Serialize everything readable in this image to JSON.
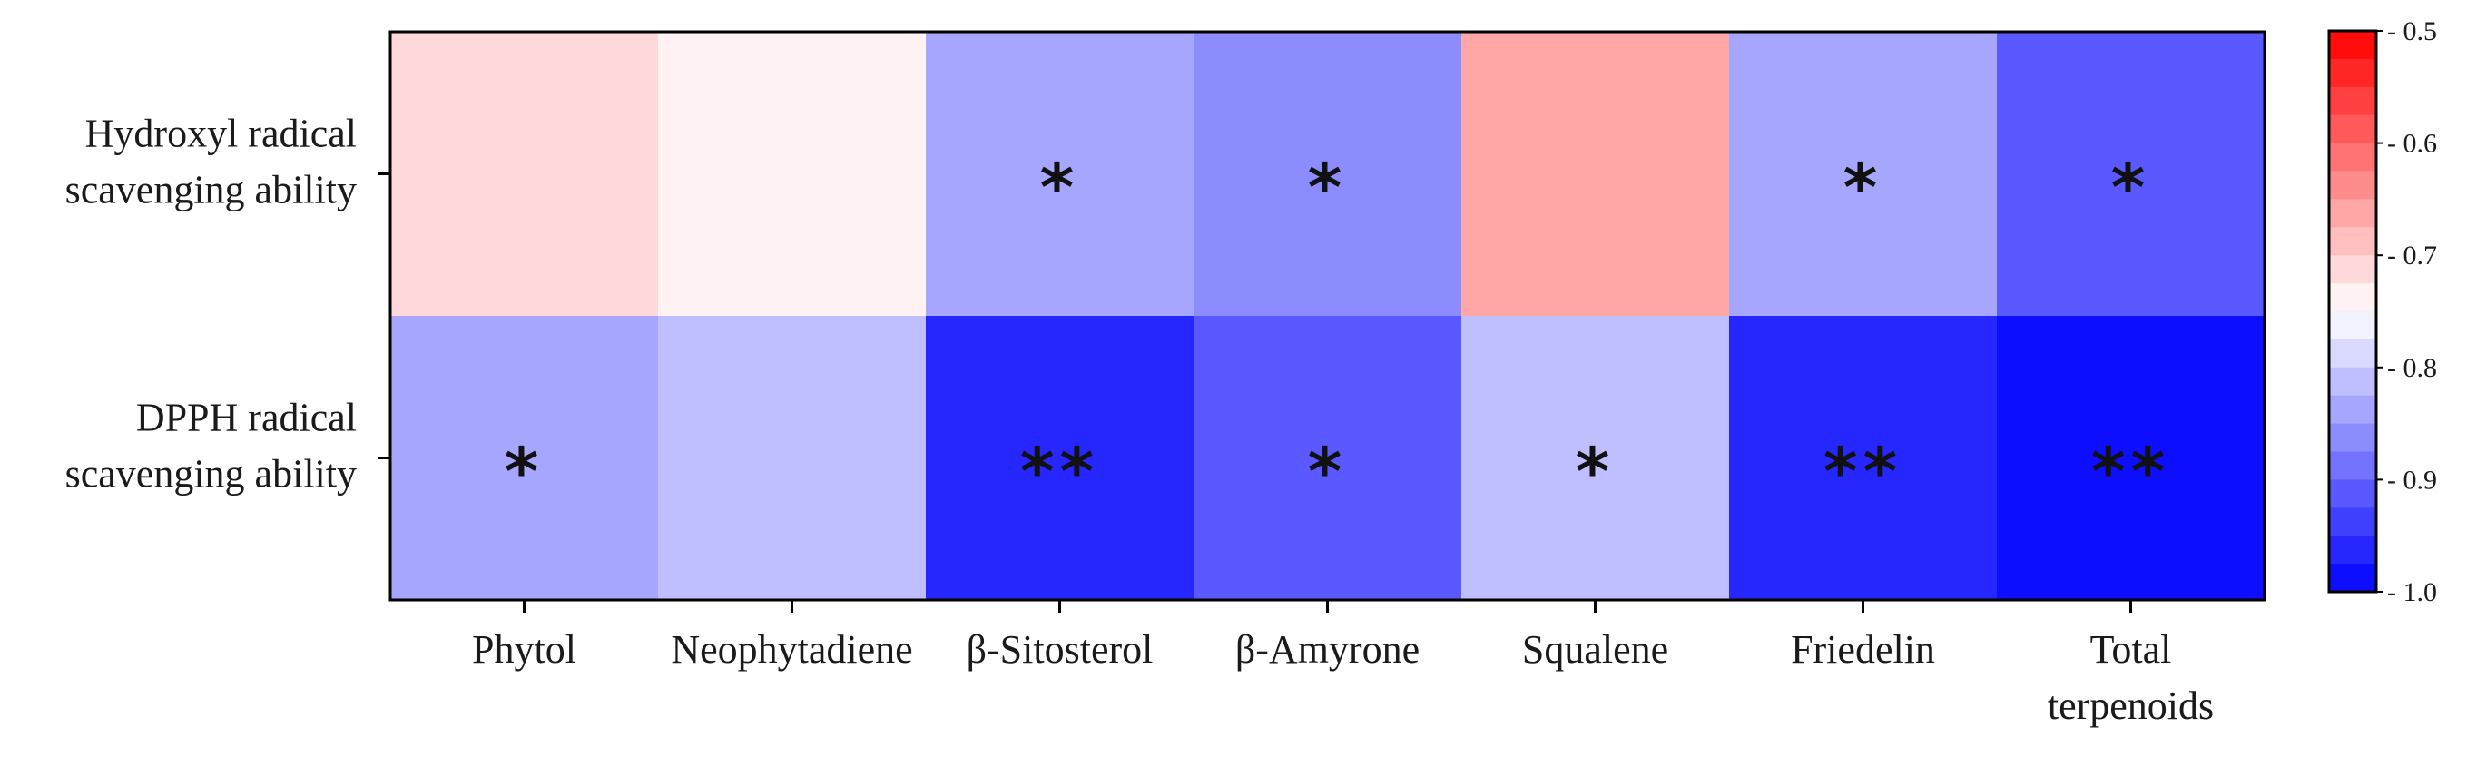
{
  "chart_data": {
    "type": "heatmap",
    "rows": [
      "Hydroxyl radical scavenging ability",
      "DPPH radical scavenging ability"
    ],
    "row_label_lines": [
      [
        "Hydroxyl radical",
        "scavenging ability"
      ],
      [
        "DPPH radical",
        "scavenging ability"
      ]
    ],
    "columns": [
      "Phytol",
      "Neophytadiene",
      "β-Sitosterol",
      "β-Amyrone",
      "Squalene",
      "Friedelin",
      "Total terpenoids"
    ],
    "column_label_lines": [
      [
        "Phytol"
      ],
      [
        "Neophytadiene"
      ],
      [
        "β-Sitosterol"
      ],
      [
        "β-Amyrone"
      ],
      [
        "Squalene"
      ],
      [
        "Friedelin"
      ],
      [
        "Total",
        "terpenoids"
      ]
    ],
    "values": [
      [
        -0.72,
        -0.75,
        -0.84,
        -0.87,
        -0.65,
        -0.84,
        -0.9
      ],
      [
        -0.84,
        -0.8,
        -0.97,
        -0.92,
        -0.82,
        -0.97,
        -1.0
      ]
    ],
    "significance": [
      [
        "",
        "",
        "*",
        "*",
        "",
        "*",
        "*"
      ],
      [
        "*",
        "",
        "**",
        "*",
        "*",
        "**",
        "**"
      ]
    ],
    "colorbar": {
      "range": [
        -1.0,
        -0.5
      ],
      "ticks": [
        "- 0.5",
        "- 0.6",
        "- 0.7",
        "- 0.8",
        "- 0.9",
        "- 1.0"
      ],
      "tick_values": [
        -0.5,
        -0.6,
        -0.7,
        -0.8,
        -0.9,
        -1.0
      ],
      "colors": {
        "low": "#0000ff",
        "mid": "#ffffff",
        "high": "#ff0000"
      },
      "mid_value": -0.75,
      "levels": 20
    }
  }
}
